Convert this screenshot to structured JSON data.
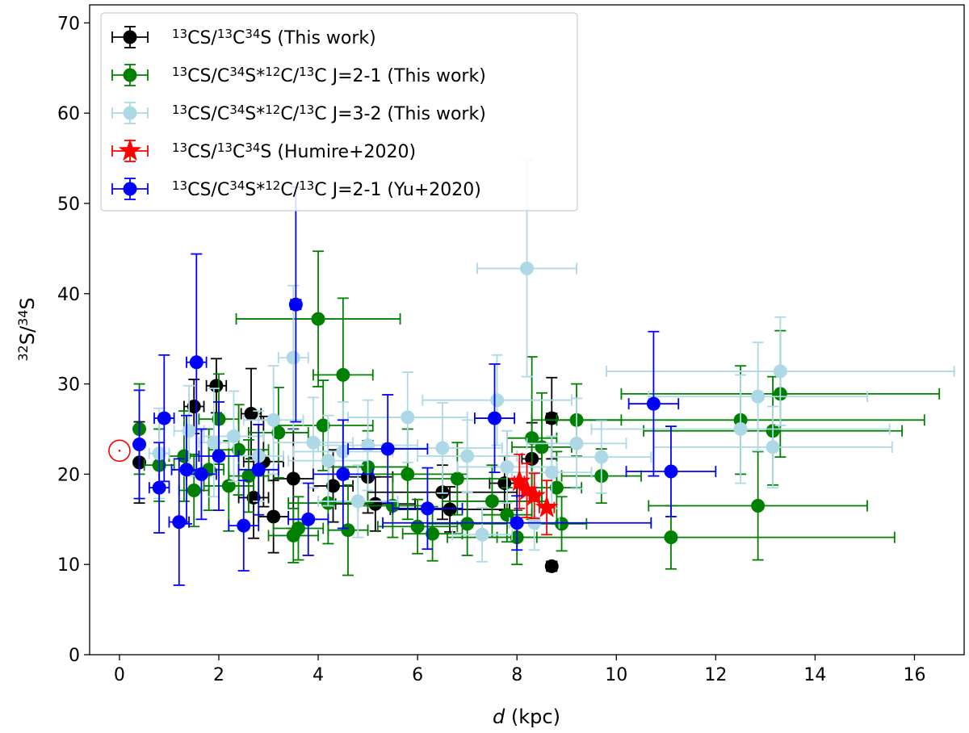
{
  "chart_data": {
    "type": "scatter",
    "xlabel": "d (kpc)",
    "ylabel": "32S/34S",
    "xlim": [
      -0.6,
      17.0
    ],
    "ylim": [
      0,
      72
    ],
    "xticks": [
      0,
      2,
      4,
      6,
      8,
      10,
      12,
      14,
      16
    ],
    "yticks": [
      0,
      10,
      20,
      30,
      40,
      50,
      60,
      70
    ],
    "solar_symbol": {
      "x": 0,
      "y": 22.6,
      "name": "Sun"
    },
    "legend_position": "top-left",
    "series": [
      {
        "name": "13CS/13C34S (This work)",
        "label_parts": [
          [
            "13",
            "sup"
          ],
          [
            "CS/",
            ""
          ],
          [
            "13",
            "sup"
          ],
          [
            "C",
            ""
          ],
          [
            "34",
            "sup"
          ],
          [
            "S (This work)",
            ""
          ]
        ],
        "color": "#000000",
        "marker": "circle",
        "points": [
          {
            "x": 0.4,
            "y": 21.3,
            "xerr": 0,
            "yerr": 4.5
          },
          {
            "x": 1.5,
            "y": 27.5,
            "xerr": 0.2,
            "yerr": 3.0
          },
          {
            "x": 1.95,
            "y": 29.8,
            "xerr": 0.2,
            "yerr": 3.0
          },
          {
            "x": 2.65,
            "y": 26.7,
            "xerr": 0.2,
            "yerr": 5.0
          },
          {
            "x": 2.7,
            "y": 17.4,
            "xerr": 0.3,
            "yerr": 4.5
          },
          {
            "x": 2.9,
            "y": 21.4,
            "xerr": 0.4,
            "yerr": 5.0
          },
          {
            "x": 3.1,
            "y": 15.3,
            "xerr": 0.3,
            "yerr": 4.0
          },
          {
            "x": 3.5,
            "y": 19.5,
            "xerr": 0.4,
            "yerr": 5.5
          },
          {
            "x": 4.3,
            "y": 18.7,
            "xerr": 0.4,
            "yerr": 4.0
          },
          {
            "x": 5.0,
            "y": 19.7,
            "xerr": 0.5,
            "yerr": 4.0
          },
          {
            "x": 5.15,
            "y": 16.7,
            "xerr": 0.8,
            "yerr": 3.0
          },
          {
            "x": 6.5,
            "y": 18.0,
            "xerr": 1.5,
            "yerr": 3.0
          },
          {
            "x": 6.65,
            "y": 16.1,
            "xerr": 1.2,
            "yerr": 2.5
          },
          {
            "x": 7.75,
            "y": 19.0,
            "xerr": 0.3,
            "yerr": 3.0
          },
          {
            "x": 8.3,
            "y": 21.7,
            "xerr": 0.2,
            "yerr": 4.0
          },
          {
            "x": 8.7,
            "y": 26.2,
            "xerr": 0.1,
            "yerr": 4.5
          },
          {
            "x": 8.7,
            "y": 9.8,
            "xerr": 0.1,
            "yerr": 0.4
          }
        ]
      },
      {
        "name": "13CS/C34S*12C/13C J=2-1 (This work)",
        "label_parts": [
          [
            "13",
            "sup"
          ],
          [
            "CS/C",
            ""
          ],
          [
            "34",
            "sup"
          ],
          [
            "S*",
            ""
          ],
          [
            "12",
            "sup"
          ],
          [
            "C/",
            ""
          ],
          [
            "13",
            "sup"
          ],
          [
            "C J=2-1 (This work)",
            ""
          ]
        ],
        "color": "#008000",
        "marker": "circle",
        "points": [
          {
            "x": 0.4,
            "y": 25.0,
            "xerr": 0,
            "yerr": 5.0
          },
          {
            "x": 0.8,
            "y": 21.0,
            "xerr": 0.3,
            "yerr": 4.0
          },
          {
            "x": 1.3,
            "y": 22.0,
            "xerr": 0.3,
            "yerr": 5.0
          },
          {
            "x": 1.5,
            "y": 18.2,
            "xerr": 0.3,
            "yerr": 4.0
          },
          {
            "x": 1.8,
            "y": 20.5,
            "xerr": 0.3,
            "yerr": 4.5
          },
          {
            "x": 2.0,
            "y": 26.1,
            "xerr": 0.4,
            "yerr": 5.0
          },
          {
            "x": 2.2,
            "y": 18.7,
            "xerr": 0.5,
            "yerr": 5.0
          },
          {
            "x": 2.4,
            "y": 22.7,
            "xerr": 0.6,
            "yerr": 5.0
          },
          {
            "x": 2.6,
            "y": 19.8,
            "xerr": 0.4,
            "yerr": 4.0
          },
          {
            "x": 3.2,
            "y": 24.6,
            "xerr": 0.6,
            "yerr": 5.0
          },
          {
            "x": 3.5,
            "y": 13.2,
            "xerr": 0.5,
            "yerr": 3.0
          },
          {
            "x": 3.6,
            "y": 14.0,
            "xerr": 0.5,
            "yerr": 3.5
          },
          {
            "x": 4.0,
            "y": 37.2,
            "xerr": 1.65,
            "yerr": 7.5
          },
          {
            "x": 4.1,
            "y": 25.4,
            "xerr": 1.0,
            "yerr": 5.0
          },
          {
            "x": 4.2,
            "y": 16.8,
            "xerr": 0.8,
            "yerr": 4.5
          },
          {
            "x": 4.5,
            "y": 31.0,
            "xerr": 0.6,
            "yerr": 8.5
          },
          {
            "x": 4.6,
            "y": 13.8,
            "xerr": 0.4,
            "yerr": 5.0
          },
          {
            "x": 5.0,
            "y": 20.8,
            "xerr": 0.8,
            "yerr": 4.0
          },
          {
            "x": 5.5,
            "y": 16.5,
            "xerr": 0.7,
            "yerr": 3.5
          },
          {
            "x": 5.8,
            "y": 20.0,
            "xerr": 1.2,
            "yerr": 5.0
          },
          {
            "x": 6.0,
            "y": 14.2,
            "xerr": 0.8,
            "yerr": 3.0
          },
          {
            "x": 6.3,
            "y": 13.4,
            "xerr": 0.6,
            "yerr": 3.0
          },
          {
            "x": 6.8,
            "y": 19.5,
            "xerr": 1.0,
            "yerr": 4.0
          },
          {
            "x": 7.0,
            "y": 14.5,
            "xerr": 0.8,
            "yerr": 3.5
          },
          {
            "x": 7.5,
            "y": 17.0,
            "xerr": 1.0,
            "yerr": 4.0
          },
          {
            "x": 7.8,
            "y": 15.5,
            "xerr": 0.5,
            "yerr": 3.0
          },
          {
            "x": 8.0,
            "y": 13.0,
            "xerr": 0.4,
            "yerr": 3.0
          },
          {
            "x": 8.3,
            "y": 24.0,
            "xerr": 0.5,
            "yerr": 9.0
          },
          {
            "x": 8.5,
            "y": 23.0,
            "xerr": 0.6,
            "yerr": 6.0
          },
          {
            "x": 8.8,
            "y": 18.5,
            "xerr": 0.5,
            "yerr": 4.0
          },
          {
            "x": 8.9,
            "y": 14.5,
            "xerr": 0.5,
            "yerr": 3.0
          },
          {
            "x": 9.2,
            "y": 26.0,
            "xerr": 0.9,
            "yerr": 4.0
          },
          {
            "x": 9.7,
            "y": 19.8,
            "xerr": 0.8,
            "yerr": 3.0
          },
          {
            "x": 11.1,
            "y": 13.0,
            "xerr": 4.5,
            "yerr": 3.5
          },
          {
            "x": 12.5,
            "y": 26.0,
            "xerr": 3.7,
            "yerr": 6.0
          },
          {
            "x": 12.85,
            "y": 16.5,
            "xerr": 2.2,
            "yerr": 6.0
          },
          {
            "x": 13.15,
            "y": 24.8,
            "xerr": 2.6,
            "yerr": 6.0
          },
          {
            "x": 13.3,
            "y": 28.9,
            "xerr": 3.2,
            "yerr": 7.0
          }
        ]
      },
      {
        "name": "13CS/C34S*12C/13C J=3-2 (This work)",
        "label_parts": [
          [
            "13",
            "sup"
          ],
          [
            "CS/C",
            ""
          ],
          [
            "34",
            "sup"
          ],
          [
            "S*",
            ""
          ],
          [
            "12",
            "sup"
          ],
          [
            "C/",
            ""
          ],
          [
            "13",
            "sup"
          ],
          [
            "C J=3-2 (This work)",
            ""
          ]
        ],
        "color": "#add8e6",
        "marker": "circle",
        "points": [
          {
            "x": 0.8,
            "y": 22.3,
            "xerr": 0.2,
            "yerr": 5.0
          },
          {
            "x": 1.4,
            "y": 24.8,
            "xerr": 0.3,
            "yerr": 5.0
          },
          {
            "x": 1.9,
            "y": 23.5,
            "xerr": 0.3,
            "yerr": 6.0
          },
          {
            "x": 2.3,
            "y": 24.2,
            "xerr": 0.6,
            "yerr": 5.0
          },
          {
            "x": 2.8,
            "y": 22.0,
            "xerr": 0.5,
            "yerr": 5.0
          },
          {
            "x": 3.1,
            "y": 26.0,
            "xerr": 0.6,
            "yerr": 6.0
          },
          {
            "x": 3.5,
            "y": 32.9,
            "xerr": 0.3,
            "yerr": 8.0
          },
          {
            "x": 3.9,
            "y": 23.5,
            "xerr": 0.8,
            "yerr": 5.0
          },
          {
            "x": 4.2,
            "y": 21.5,
            "xerr": 0.8,
            "yerr": 5.0
          },
          {
            "x": 4.5,
            "y": 22.5,
            "xerr": 1.0,
            "yerr": 5.5
          },
          {
            "x": 4.8,
            "y": 17.0,
            "xerr": 0.8,
            "yerr": 4.0
          },
          {
            "x": 5.0,
            "y": 23.2,
            "xerr": 1.0,
            "yerr": 5.0
          },
          {
            "x": 5.8,
            "y": 26.3,
            "xerr": 1.2,
            "yerr": 5.0
          },
          {
            "x": 6.5,
            "y": 22.9,
            "xerr": 1.2,
            "yerr": 5.0
          },
          {
            "x": 7.0,
            "y": 22.0,
            "xerr": 1.0,
            "yerr": 4.0
          },
          {
            "x": 7.3,
            "y": 13.3,
            "xerr": 0.6,
            "yerr": 3.0
          },
          {
            "x": 7.6,
            "y": 28.2,
            "xerr": 1.5,
            "yerr": 5.0
          },
          {
            "x": 7.8,
            "y": 20.8,
            "xerr": 1.0,
            "yerr": 4.0
          },
          {
            "x": 8.2,
            "y": 42.8,
            "xerr": 1.0,
            "yerr": 12.0
          },
          {
            "x": 8.35,
            "y": 14.6,
            "xerr": 0.5,
            "yerr": 3.0
          },
          {
            "x": 8.7,
            "y": 20.2,
            "xerr": 0.8,
            "yerr": 4.0
          },
          {
            "x": 9.2,
            "y": 23.4,
            "xerr": 1.0,
            "yerr": 5.0
          },
          {
            "x": 9.7,
            "y": 21.9,
            "xerr": 1.0,
            "yerr": 4.0
          },
          {
            "x": 12.5,
            "y": 25.0,
            "xerr": 3.0,
            "yerr": 6.0
          },
          {
            "x": 12.85,
            "y": 28.6,
            "xerr": 2.2,
            "yerr": 6.0
          },
          {
            "x": 13.15,
            "y": 23.0,
            "xerr": 2.4,
            "yerr": 4.5
          },
          {
            "x": 13.3,
            "y": 31.4,
            "xerr": 3.5,
            "yerr": 6.0
          }
        ]
      },
      {
        "name": "13CS/13C34S (Humire+2020)",
        "label_parts": [
          [
            "13",
            "sup"
          ],
          [
            "CS/",
            ""
          ],
          [
            "13",
            "sup"
          ],
          [
            "C",
            ""
          ],
          [
            "34",
            "sup"
          ],
          [
            "S (Humire+2020)",
            ""
          ]
        ],
        "color": "#ff0000",
        "marker": "star",
        "points": [
          {
            "x": 8.05,
            "y": 19.2,
            "xerr": 0.1,
            "yerr": 3.0
          },
          {
            "x": 8.2,
            "y": 18.2,
            "xerr": 0.1,
            "yerr": 3.0
          },
          {
            "x": 8.35,
            "y": 17.6,
            "xerr": 0.1,
            "yerr": 2.5
          },
          {
            "x": 8.6,
            "y": 16.3,
            "xerr": 0.15,
            "yerr": 3.0
          }
        ]
      },
      {
        "name": "13CS/C34S*12C/13C J=2-1 (Yu+2020)",
        "label_parts": [
          [
            "13",
            "sup"
          ],
          [
            "CS/C",
            ""
          ],
          [
            "34",
            "sup"
          ],
          [
            "S*",
            ""
          ],
          [
            "12",
            "sup"
          ],
          [
            "C/",
            ""
          ],
          [
            "13",
            "sup"
          ],
          [
            "C J=2-1 (Yu+2020)",
            ""
          ]
        ],
        "color": "#0000ff",
        "marker": "circle",
        "points": [
          {
            "x": 0.4,
            "y": 23.3,
            "xerr": 0,
            "yerr": 6.0
          },
          {
            "x": 0.8,
            "y": 18.5,
            "xerr": 0.2,
            "yerr": 5.0
          },
          {
            "x": 0.9,
            "y": 26.2,
            "xerr": 0.2,
            "yerr": 7.0
          },
          {
            "x": 1.2,
            "y": 14.7,
            "xerr": 0.2,
            "yerr": 7.0
          },
          {
            "x": 1.35,
            "y": 20.5,
            "xerr": 0.3,
            "yerr": 6.0
          },
          {
            "x": 1.55,
            "y": 32.4,
            "xerr": 0.2,
            "yerr": 12.0
          },
          {
            "x": 1.65,
            "y": 20.0,
            "xerr": 0.3,
            "yerr": 5.0
          },
          {
            "x": 2.0,
            "y": 22.0,
            "xerr": 0.4,
            "yerr": 6.0
          },
          {
            "x": 2.5,
            "y": 14.3,
            "xerr": 0.3,
            "yerr": 5.0
          },
          {
            "x": 2.8,
            "y": 20.5,
            "xerr": 0.4,
            "yerr": 5.0
          },
          {
            "x": 3.55,
            "y": 38.8,
            "xerr": 0.1,
            "yerr": 13.0
          },
          {
            "x": 3.8,
            "y": 15.0,
            "xerr": 0.4,
            "yerr": 4.0
          },
          {
            "x": 4.5,
            "y": 20.0,
            "xerr": 0.6,
            "yerr": 6.0
          },
          {
            "x": 5.4,
            "y": 22.8,
            "xerr": 0.8,
            "yerr": 6.0
          },
          {
            "x": 6.2,
            "y": 16.2,
            "xerr": 0.7,
            "yerr": 4.5
          },
          {
            "x": 7.55,
            "y": 26.2,
            "xerr": 0.4,
            "yerr": 6.0
          },
          {
            "x": 8.0,
            "y": 14.6,
            "xerr": 2.7,
            "yerr": 3.0
          },
          {
            "x": 10.75,
            "y": 27.8,
            "xerr": 0.5,
            "yerr": 8.0
          },
          {
            "x": 11.1,
            "y": 20.3,
            "xerr": 0.9,
            "yerr": 5.0
          }
        ]
      }
    ]
  }
}
